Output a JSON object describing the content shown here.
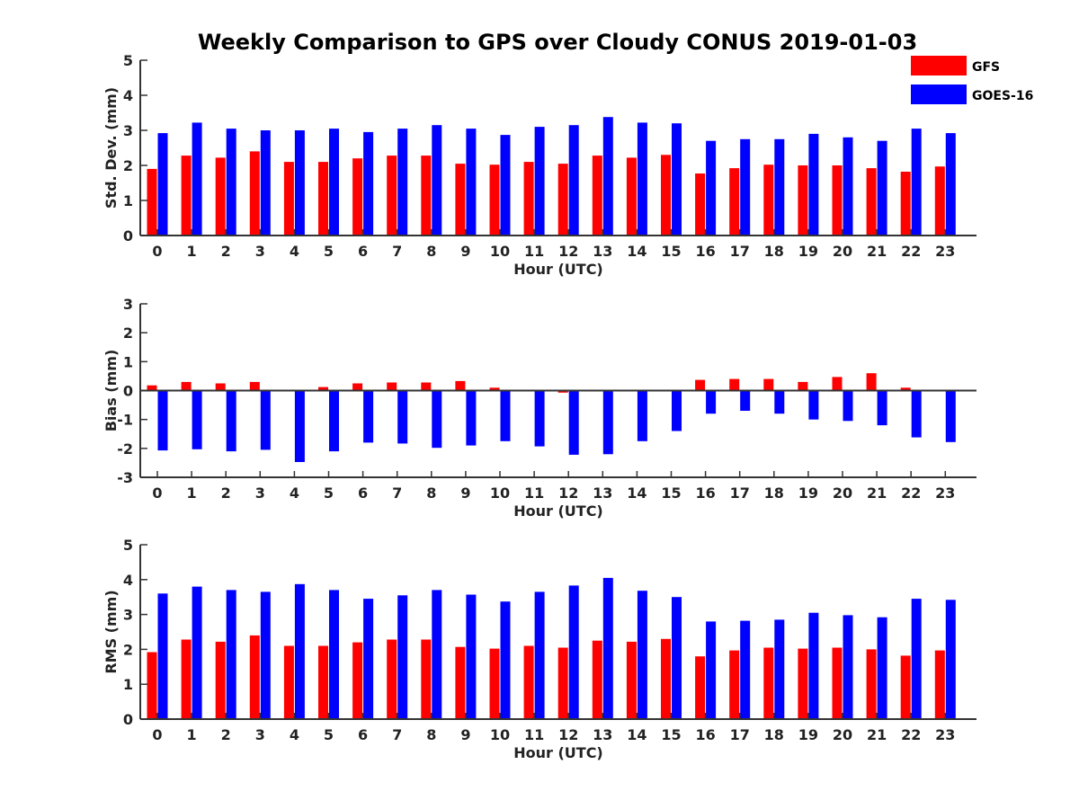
{
  "title": "Weekly Comparison to GPS over Cloudy CONUS 2019-01-03",
  "colors": {
    "GFS": "#ff0000",
    "GOES-16": "#0000ff",
    "axis": "#333333"
  },
  "legend": {
    "placement": "top-right",
    "entries": [
      "GFS",
      "GOES-16"
    ]
  },
  "chart_data": [
    {
      "type": "bar",
      "xlabel": "Hour (UTC)",
      "ylabel": "Std. Dev. (mm)",
      "ylim": [
        0,
        5
      ],
      "yticks": [
        0,
        1,
        2,
        3,
        4,
        5
      ],
      "grid": false,
      "categories": [
        "0",
        "1",
        "2",
        "3",
        "4",
        "5",
        "6",
        "7",
        "8",
        "9",
        "10",
        "11",
        "12",
        "13",
        "14",
        "15",
        "16",
        "17",
        "18",
        "19",
        "20",
        "21",
        "22",
        "23"
      ],
      "series": [
        {
          "name": "GFS",
          "values": [
            1.9,
            2.28,
            2.22,
            2.4,
            2.1,
            2.1,
            2.2,
            2.28,
            2.28,
            2.05,
            2.02,
            2.1,
            2.05,
            2.28,
            2.22,
            2.3,
            1.77,
            1.92,
            2.02,
            2.0,
            2.0,
            1.92,
            1.82,
            1.97
          ]
        },
        {
          "name": "GOES-16",
          "values": [
            2.92,
            3.22,
            3.05,
            3.0,
            3.0,
            3.05,
            2.95,
            3.05,
            3.15,
            3.05,
            2.87,
            3.1,
            3.15,
            3.38,
            3.22,
            3.2,
            2.7,
            2.75,
            2.75,
            2.9,
            2.8,
            2.7,
            3.05,
            2.92
          ]
        }
      ]
    },
    {
      "type": "bar",
      "xlabel": "Hour (UTC)",
      "ylabel": "Bias (mm)",
      "ylim": [
        -3,
        3
      ],
      "yticks": [
        -3,
        -2,
        -1,
        0,
        1,
        2,
        3
      ],
      "grid": false,
      "zero_line": true,
      "categories": [
        "0",
        "1",
        "2",
        "3",
        "4",
        "5",
        "6",
        "7",
        "8",
        "9",
        "10",
        "11",
        "12",
        "13",
        "14",
        "15",
        "16",
        "17",
        "18",
        "19",
        "20",
        "21",
        "22",
        "23"
      ],
      "series": [
        {
          "name": "GFS",
          "values": [
            0.18,
            0.3,
            0.25,
            0.3,
            0.0,
            0.12,
            0.25,
            0.28,
            0.28,
            0.33,
            0.1,
            0.0,
            -0.07,
            0.0,
            0.0,
            0.0,
            0.37,
            0.4,
            0.4,
            0.3,
            0.47,
            0.6,
            0.1,
            0.0
          ]
        },
        {
          "name": "GOES-16",
          "values": [
            -2.07,
            -2.03,
            -2.1,
            -2.05,
            -2.47,
            -2.1,
            -1.8,
            -1.83,
            -1.98,
            -1.9,
            -1.75,
            -1.93,
            -2.22,
            -2.2,
            -1.75,
            -1.4,
            -0.8,
            -0.7,
            -0.8,
            -1.0,
            -1.05,
            -1.2,
            -1.62,
            -1.78
          ]
        }
      ]
    },
    {
      "type": "bar",
      "xlabel": "Hour (UTC)",
      "ylabel": "RMS (mm)",
      "ylim": [
        0,
        5
      ],
      "yticks": [
        0,
        1,
        2,
        3,
        4,
        5
      ],
      "grid": false,
      "categories": [
        "0",
        "1",
        "2",
        "3",
        "4",
        "5",
        "6",
        "7",
        "8",
        "9",
        "10",
        "11",
        "12",
        "13",
        "14",
        "15",
        "16",
        "17",
        "18",
        "19",
        "20",
        "21",
        "22",
        "23"
      ],
      "series": [
        {
          "name": "GFS",
          "values": [
            1.92,
            2.28,
            2.22,
            2.4,
            2.1,
            2.1,
            2.2,
            2.28,
            2.28,
            2.07,
            2.02,
            2.1,
            2.05,
            2.25,
            2.22,
            2.3,
            1.8,
            1.97,
            2.05,
            2.02,
            2.05,
            2.0,
            1.82,
            1.97
          ]
        },
        {
          "name": "GOES-16",
          "values": [
            3.6,
            3.8,
            3.7,
            3.65,
            3.87,
            3.7,
            3.45,
            3.55,
            3.7,
            3.57,
            3.37,
            3.65,
            3.83,
            4.05,
            3.68,
            3.5,
            2.8,
            2.82,
            2.85,
            3.05,
            2.98,
            2.92,
            3.45,
            3.42
          ]
        }
      ]
    }
  ]
}
